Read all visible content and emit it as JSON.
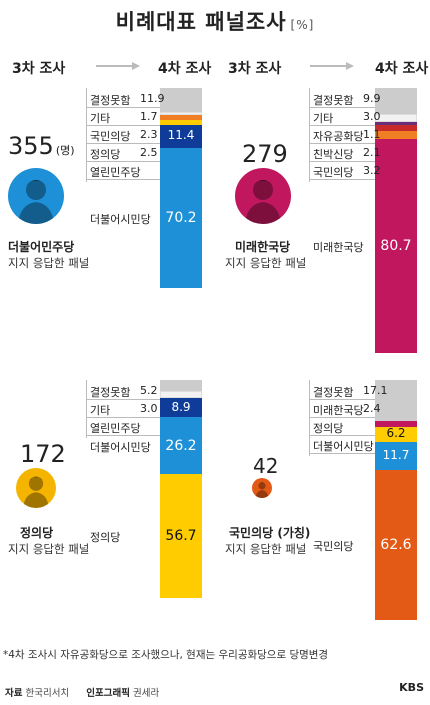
{
  "title": "비례대표 패널조사",
  "unit": "[%]",
  "headers": {
    "from": "3차 조사",
    "to": "4차 조사"
  },
  "note": "*4차 조사시 자유공화당으로 조사했으나, 현재는 우리공화당으로 당명변경",
  "footer": {
    "source_label": "자료",
    "source": "한국리서치",
    "graphic_label": "인포그래픽",
    "graphic": "권세라",
    "logo": "KBS"
  },
  "colors": {
    "undecided": "#cccccc",
    "other": "#f2f2f2",
    "minor": "#f07e22",
    "justice": "#ffcc00",
    "open_democratic": "#0f3c98",
    "citizen": "#1e90d8",
    "future_korea": "#c0175f",
    "peoples_party": "#e35a16",
    "liberty_republic": "#6b2f7a",
    "pro_park": "#c62a2a",
    "line": "#bbbbbb"
  },
  "icons": [
    "arrow-right-icon",
    "person-silhouette-icon"
  ],
  "chart_data": [
    {
      "type": "bar",
      "panel": "더불어민주당 지지 응답한 패널",
      "count": "355",
      "count_unit": "(명)",
      "party": "더불어민주당",
      "subtitle": "지지 응답한 패널",
      "avatar_color": "#1e90d8",
      "series": [
        {
          "name": "결정못함",
          "value": 11.9,
          "label": "11.9",
          "color": "#cccccc"
        },
        {
          "name": "기타",
          "value": 1.7,
          "label": "1.7",
          "color": "#f2f2f2"
        },
        {
          "name": "국민의당",
          "value": 2.3,
          "label": "2.3",
          "color": "#f07e22"
        },
        {
          "name": "정의당",
          "value": 2.5,
          "label": "2.5",
          "color": "#ffcc00"
        },
        {
          "name": "열린민주당",
          "value": 11.4,
          "label": "11.4",
          "color": "#0f3c98",
          "inside": true
        },
        {
          "name": "더불어시민당",
          "value": 70.2,
          "label": "70.2",
          "color": "#1e90d8",
          "inside": true
        }
      ]
    },
    {
      "type": "bar",
      "panel": "미래한국당 지지 응답한 패널",
      "count": "279",
      "count_unit": "",
      "party": "미래한국당",
      "subtitle": "지지 응답한 패널",
      "avatar_color": "#c0175f",
      "series": [
        {
          "name": "결정못함",
          "value": 9.9,
          "label": "9.9",
          "color": "#cccccc"
        },
        {
          "name": "기타",
          "value": 3.0,
          "label": "3.0",
          "color": "#f2f2f2"
        },
        {
          "name": "자유공화당",
          "value": 1.1,
          "label": "1.1",
          "color": "#6b2f7a"
        },
        {
          "name": "친박신당",
          "value": 2.1,
          "label": "2.1",
          "color": "#c62a2a"
        },
        {
          "name": "국민의당",
          "value": 3.2,
          "label": "3.2",
          "color": "#f07e22"
        },
        {
          "name": "미래한국당",
          "value": 80.7,
          "label": "80.7",
          "color": "#c0175f",
          "inside": true
        }
      ]
    },
    {
      "type": "bar",
      "panel": "정의당 지지 응답한 패널",
      "count": "172",
      "count_unit": "",
      "party": "정의당",
      "subtitle": "지지 응답한 패널",
      "avatar_color": "#f5b400",
      "series": [
        {
          "name": "결정못함",
          "value": 5.2,
          "label": "5.2",
          "color": "#cccccc"
        },
        {
          "name": "기타",
          "value": 3.0,
          "label": "3.0",
          "color": "#f2f2f2"
        },
        {
          "name": "열린민주당",
          "value": 8.9,
          "label": "8.9",
          "color": "#0f3c98",
          "inside": true
        },
        {
          "name": "더불어시민당",
          "value": 26.2,
          "label": "26.2",
          "color": "#1e90d8",
          "inside": true
        },
        {
          "name": "정의당",
          "value": 56.7,
          "label": "56.7",
          "color": "#ffcc00",
          "inside": true,
          "dark_text": true
        }
      ]
    },
    {
      "type": "bar",
      "panel": "국민의당 (가칭) 지지 응답한 패널",
      "count": "42",
      "count_unit": "",
      "party": "국민의당 (가칭)",
      "subtitle": "지지 응답한 패널",
      "avatar_color": "#e35a16",
      "series": [
        {
          "name": "결정못함",
          "value": 17.1,
          "label": "17.1",
          "color": "#cccccc"
        },
        {
          "name": "미래한국당",
          "value": 2.4,
          "label": "2.4",
          "color": "#c0175f"
        },
        {
          "name": "정의당",
          "value": 6.2,
          "label": "6.2",
          "color": "#ffcc00",
          "inside": true,
          "dark_text": true
        },
        {
          "name": "더불어시민당",
          "value": 11.7,
          "label": "11.7",
          "color": "#1e90d8",
          "inside": true
        },
        {
          "name": "국민의당",
          "value": 62.6,
          "label": "62.6",
          "color": "#e35a16",
          "inside": true
        }
      ]
    }
  ]
}
